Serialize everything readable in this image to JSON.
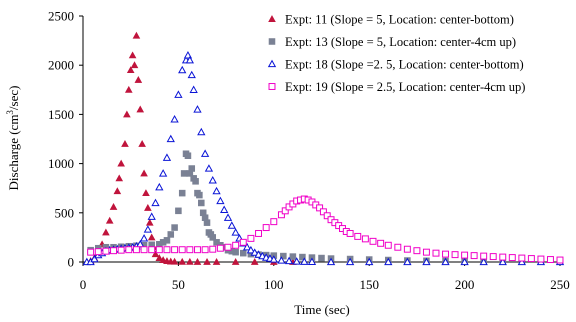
{
  "chart_data": {
    "type": "scatter",
    "xlabel": "Time (sec)",
    "ylabel": "Discharge (cm3/sec)",
    "xlim": [
      0,
      250
    ],
    "ylim": [
      0,
      2500
    ],
    "x_ticks": [
      0,
      50,
      100,
      150,
      200,
      250
    ],
    "y_ticks": [
      0,
      500,
      1000,
      1500,
      2000,
      2500
    ],
    "grid": false,
    "legend_position": "top-right",
    "series": [
      {
        "name": "Expt: 11 (Slope = 5, Location: center-bottom)",
        "marker": "filled-triangle",
        "color": "#C0143C",
        "x": [
          4,
          6,
          8,
          10,
          12,
          14,
          16,
          18,
          19,
          20,
          22,
          23,
          24,
          25,
          26,
          27,
          28,
          29,
          30,
          31,
          32,
          33,
          34,
          35,
          36,
          37,
          38,
          40,
          42,
          44,
          46,
          48,
          52,
          56,
          60,
          65,
          70,
          80,
          90,
          100,
          110,
          120,
          130
        ],
        "y": [
          10,
          40,
          90,
          180,
          300,
          420,
          560,
          720,
          850,
          1000,
          1200,
          1500,
          1750,
          1950,
          2100,
          2000,
          2300,
          1850,
          1550,
          1200,
          900,
          700,
          550,
          400,
          250,
          150,
          80,
          40,
          20,
          10,
          5,
          3,
          2,
          2,
          1,
          1,
          1,
          1,
          1,
          1,
          1,
          1,
          1
        ]
      },
      {
        "name": "Expt: 13 (Slope = 5, Location: center-4cm up)",
        "marker": "filled-square",
        "color": "#7A8194",
        "x": [
          4,
          8,
          12,
          16,
          20,
          24,
          28,
          32,
          36,
          40,
          42,
          44,
          46,
          48,
          50,
          52,
          53,
          54,
          55,
          56,
          57,
          58,
          59,
          60,
          61,
          62,
          63,
          64,
          65,
          66,
          67,
          68,
          70,
          72,
          74,
          76,
          78,
          80,
          84,
          88,
          92,
          96,
          100,
          105,
          110,
          115,
          120,
          125,
          130,
          140,
          150,
          160,
          170,
          180,
          190,
          200,
          210,
          220,
          230,
          240,
          250
        ],
        "y": [
          120,
          140,
          150,
          150,
          155,
          160,
          165,
          170,
          175,
          180,
          200,
          220,
          280,
          350,
          520,
          700,
          900,
          1100,
          1080,
          900,
          950,
          850,
          820,
          700,
          680,
          600,
          500,
          450,
          400,
          300,
          280,
          250,
          200,
          170,
          150,
          120,
          110,
          100,
          90,
          80,
          75,
          70,
          65,
          60,
          55,
          50,
          45,
          40,
          35,
          30,
          25,
          20,
          15,
          12,
          10,
          10,
          8,
          8,
          6,
          5,
          5
        ]
      },
      {
        "name": "Expt: 18  (Slope =2. 5, Location: center-bottom)",
        "marker": "hollow-triangle",
        "color": "#0A14D6",
        "x": [
          2,
          4,
          6,
          8,
          10,
          12,
          14,
          16,
          18,
          20,
          22,
          24,
          26,
          28,
          30,
          32,
          34,
          36,
          38,
          40,
          42,
          44,
          46,
          48,
          50,
          52,
          54,
          55,
          56,
          57,
          58,
          60,
          62,
          64,
          66,
          68,
          70,
          72,
          74,
          76,
          78,
          80,
          82,
          84,
          86,
          88,
          90,
          92,
          94,
          96,
          98,
          100,
          104,
          108,
          112,
          116,
          120,
          130,
          140,
          150,
          160,
          170,
          180,
          190,
          200,
          210,
          220,
          230,
          240,
          250
        ],
        "y": [
          0,
          0,
          30,
          70,
          90,
          110,
          120,
          125,
          130,
          135,
          140,
          145,
          150,
          160,
          180,
          240,
          330,
          460,
          600,
          760,
          900,
          1060,
          1250,
          1450,
          1700,
          1950,
          2050,
          2100,
          2050,
          1900,
          1750,
          1550,
          1320,
          1100,
          950,
          830,
          720,
          620,
          530,
          450,
          370,
          300,
          240,
          190,
          150,
          120,
          95,
          75,
          60,
          45,
          35,
          25,
          15,
          10,
          5,
          3,
          2,
          0,
          0,
          0,
          0,
          0,
          0,
          0,
          0,
          0,
          0,
          0,
          0,
          0
        ]
      },
      {
        "name": "Expt: 19 (Slope = 2.5, Location: center-4cm up)",
        "marker": "hollow-square",
        "color": "#F000C8",
        "x": [
          4,
          8,
          12,
          16,
          20,
          24,
          28,
          32,
          36,
          40,
          44,
          48,
          52,
          56,
          60,
          64,
          68,
          72,
          76,
          80,
          84,
          88,
          92,
          96,
          100,
          104,
          106,
          108,
          110,
          112,
          114,
          116,
          118,
          120,
          122,
          124,
          126,
          128,
          130,
          132,
          134,
          136,
          138,
          140,
          144,
          148,
          152,
          156,
          160,
          165,
          170,
          175,
          180,
          185,
          190,
          195,
          200,
          205,
          210,
          215,
          220,
          225,
          230,
          235,
          240,
          245,
          250
        ],
        "y": [
          100,
          105,
          110,
          115,
          120,
          125,
          125,
          125,
          125,
          125,
          125,
          125,
          125,
          125,
          125,
          125,
          130,
          140,
          150,
          170,
          200,
          240,
          290,
          350,
          410,
          480,
          520,
          560,
          590,
          620,
          630,
          640,
          630,
          610,
          580,
          550,
          510,
          470,
          430,
          400,
          370,
          340,
          310,
          290,
          260,
          235,
          210,
          190,
          170,
          150,
          130,
          115,
          100,
          90,
          80,
          75,
          70,
          65,
          60,
          55,
          50,
          45,
          40,
          35,
          30,
          25,
          20
        ]
      }
    ]
  }
}
